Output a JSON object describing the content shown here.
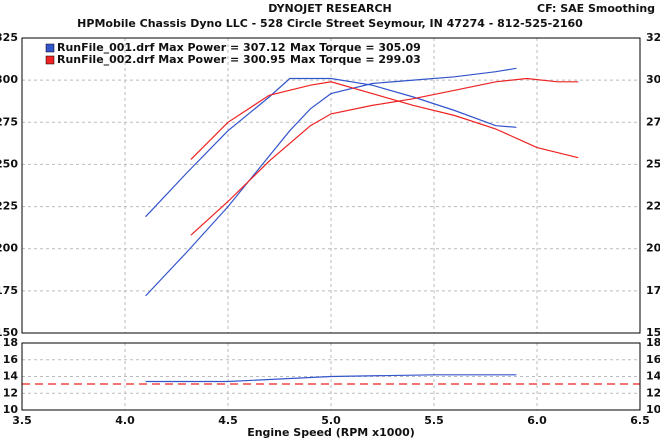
{
  "header": {
    "title": "DYNOJET RESEARCH",
    "subtitle": "HPMobile Chassis Dyno LLC - 528 Circle Street Seymour, IN 47274 - 812-525-2160",
    "settings": "CF: SAE  Smoothing"
  },
  "chart_data": [
    {
      "type": "line",
      "legend": [
        {
          "color": "#3355cc",
          "text": "RunFile_001.drf Max Power = 307.12",
          "torque_text": "Max Torque = 305.09"
        },
        {
          "color": "#ee2222",
          "text": "RunFile_002.drf Max Power = 300.95",
          "torque_text": "Max Torque = 299.03"
        }
      ],
      "xlim": [
        3.5,
        6.5
      ],
      "ylim": [
        150,
        325
      ],
      "yticks": [
        150,
        175,
        200,
        225,
        250,
        275,
        300,
        325
      ],
      "grid": true,
      "series": [
        {
          "color": "#3355cc",
          "x": [
            4.1,
            4.3,
            4.5,
            4.7,
            4.8,
            4.9,
            5.0,
            5.2,
            5.4,
            5.6,
            5.8,
            5.9
          ],
          "values": [
            172,
            198,
            225,
            255,
            270,
            283,
            292,
            298,
            300,
            302,
            305,
            307
          ]
        },
        {
          "color": "#3355cc",
          "x": [
            4.1,
            4.3,
            4.5,
            4.7,
            4.8,
            5.0,
            5.2,
            5.4,
            5.6,
            5.8,
            5.9
          ],
          "values": [
            219,
            245,
            270,
            290,
            301,
            301,
            297,
            290,
            282,
            273,
            272
          ]
        },
        {
          "color": "#ee2222",
          "x": [
            4.32,
            4.5,
            4.7,
            4.9,
            5.0,
            5.2,
            5.4,
            5.6,
            5.8,
            5.95,
            6.1,
            6.2
          ],
          "values": [
            208,
            228,
            252,
            273,
            280,
            285,
            289,
            294,
            299,
            301,
            299,
            299
          ]
        },
        {
          "color": "#ee2222",
          "x": [
            4.32,
            4.5,
            4.7,
            4.9,
            5.0,
            5.2,
            5.4,
            5.6,
            5.8,
            6.0,
            6.2
          ],
          "values": [
            253,
            275,
            291,
            297,
            299,
            292,
            285,
            279,
            271,
            260,
            254
          ]
        }
      ]
    },
    {
      "type": "line",
      "xlabel": "Engine Speed (RPM x1000)",
      "xlim": [
        3.5,
        6.5
      ],
      "xticks": [
        3.5,
        {
          "value": 4.0,
          "label": "4.0"
        },
        4.5,
        {
          "value": 5.0,
          "label": "5.0"
        },
        5.5,
        {
          "value": 6.0,
          "label": "6.0"
        },
        6.5
      ],
      "ylim": [
        10,
        18
      ],
      "yticks": [
        10,
        12,
        14,
        16,
        18
      ],
      "grid": true,
      "series": [
        {
          "color": "#3355cc",
          "x": [
            4.1,
            4.5,
            5.0,
            5.5,
            5.9
          ],
          "values": [
            13.4,
            13.4,
            14.0,
            14.2,
            14.2
          ]
        },
        {
          "color": "#ee2222",
          "dashed": true,
          "x": [
            3.5,
            6.5
          ],
          "values": [
            13.1,
            13.1
          ]
        }
      ]
    }
  ]
}
